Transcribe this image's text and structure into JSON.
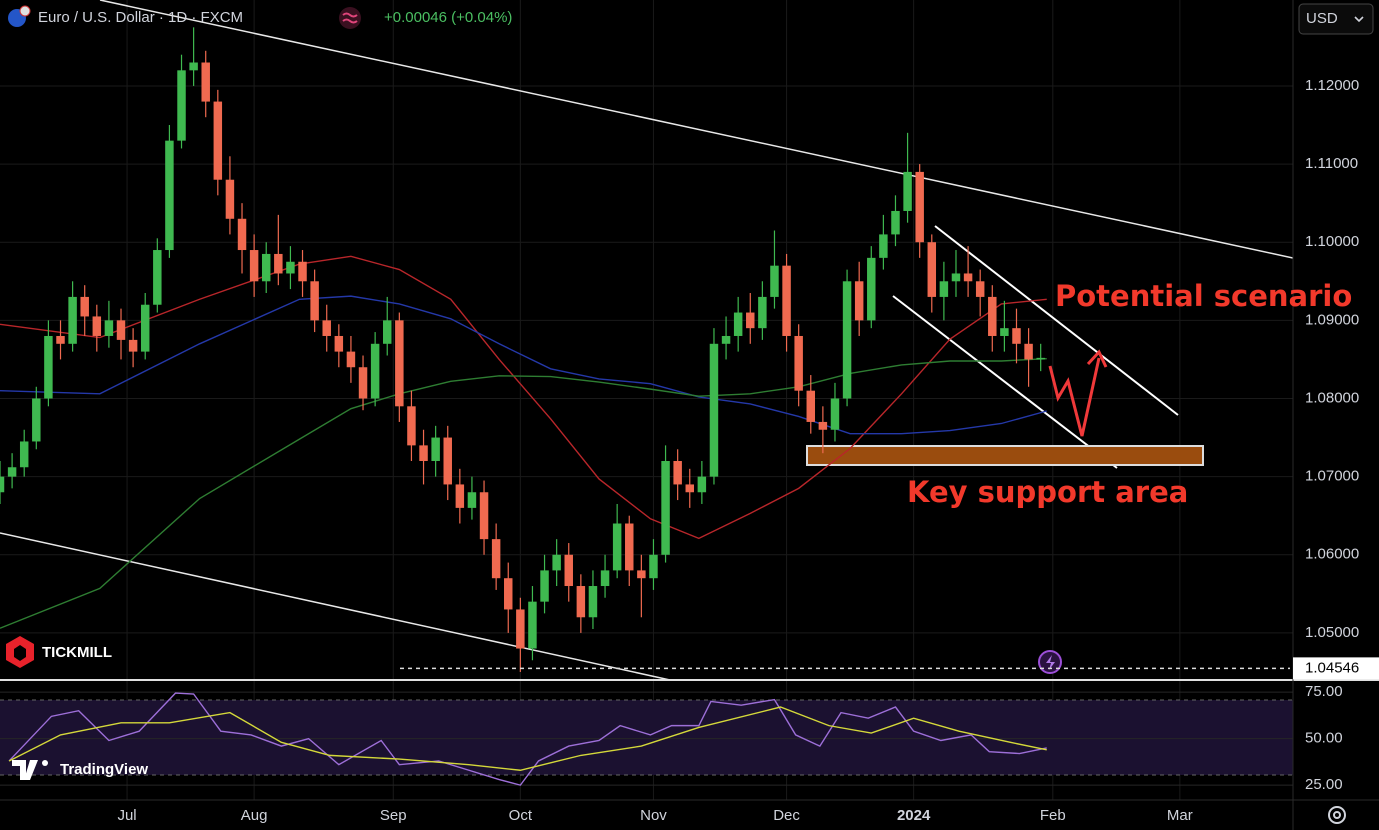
{
  "header": {
    "title": "Euro / U.S. Dollar · 1D · FXCM",
    "change": "+0.00046 (+0.04%)",
    "currency": "USD"
  },
  "branding": {
    "broker": "TICKMILL",
    "platform": "TradingView"
  },
  "chart_data": [
    {
      "type": "candlestick",
      "up_color": "#3fb950",
      "down_color": "#f06a50",
      "x": [
        -21,
        -19,
        -17,
        -15,
        -13,
        -11,
        -9,
        -7,
        -5,
        -3,
        -1,
        1,
        3,
        5,
        7,
        9,
        11,
        13,
        15,
        17,
        19,
        21,
        23,
        25,
        27,
        29,
        31,
        33,
        35,
        37,
        39,
        41,
        43,
        45,
        47,
        49,
        51,
        53,
        55,
        57,
        59,
        61,
        63,
        65,
        67,
        69,
        71,
        73,
        75,
        77,
        79,
        81,
        83,
        85,
        87,
        89,
        91,
        93,
        95,
        97,
        99,
        101,
        103,
        105,
        107,
        109,
        111,
        113,
        115,
        117,
        119,
        121,
        123,
        125,
        127,
        129,
        131,
        133,
        135,
        137,
        139,
        141,
        143,
        145,
        147,
        149,
        151
      ],
      "open": [
        1.068,
        1.07,
        1.0712,
        1.0745,
        1.08,
        1.088,
        1.087,
        1.093,
        1.0905,
        1.088,
        1.09,
        1.0875,
        1.086,
        1.092,
        1.099,
        1.113,
        1.122,
        1.123,
        1.118,
        1.108,
        1.103,
        1.099,
        1.095,
        1.0985,
        1.096,
        1.0975,
        1.095,
        1.09,
        1.088,
        1.086,
        1.084,
        1.08,
        1.087,
        1.09,
        1.079,
        1.074,
        1.072,
        1.075,
        1.069,
        1.066,
        1.068,
        1.062,
        1.057,
        1.053,
        1.048,
        1.054,
        1.058,
        1.06,
        1.056,
        1.052,
        1.056,
        1.058,
        1.064,
        1.058,
        1.057,
        1.06,
        1.072,
        1.069,
        1.068,
        1.07,
        1.087,
        1.088,
        1.091,
        1.089,
        1.093,
        1.097,
        1.088,
        1.081,
        1.077,
        1.076,
        1.08,
        1.095,
        1.09,
        1.098,
        1.101,
        1.104,
        1.109,
        1.1,
        1.093,
        1.095,
        1.096,
        1.095,
        1.093,
        1.088,
        1.089,
        1.087,
        1.085
      ],
      "high": [
        1.072,
        1.073,
        1.076,
        1.0815,
        1.09,
        1.09,
        1.095,
        1.0945,
        1.092,
        1.0925,
        1.0915,
        1.089,
        1.0935,
        1.1005,
        1.115,
        1.124,
        1.1275,
        1.1245,
        1.1195,
        1.111,
        1.105,
        1.101,
        1.1,
        1.1035,
        1.0995,
        1.099,
        1.0965,
        1.092,
        1.0895,
        1.088,
        1.0855,
        1.0885,
        1.093,
        1.091,
        1.081,
        1.076,
        1.0765,
        1.0765,
        1.071,
        1.07,
        1.0695,
        1.064,
        1.059,
        1.0545,
        1.056,
        1.06,
        1.062,
        1.0615,
        1.0575,
        1.058,
        1.06,
        1.0665,
        1.065,
        1.06,
        1.062,
        1.074,
        1.0735,
        1.071,
        1.072,
        1.089,
        1.0905,
        1.093,
        1.0935,
        1.095,
        1.1015,
        1.0985,
        1.0895,
        1.083,
        1.079,
        1.082,
        1.0965,
        1.0975,
        1.0995,
        1.1035,
        1.106,
        1.114,
        1.11,
        1.101,
        1.0975,
        1.099,
        1.0995,
        1.0965,
        1.0945,
        1.0925,
        1.0915,
        1.089,
        1.087
      ],
      "low": [
        1.0665,
        1.0685,
        1.07,
        1.0735,
        1.079,
        1.085,
        1.086,
        1.088,
        1.086,
        1.0865,
        1.085,
        1.084,
        1.085,
        1.091,
        1.098,
        1.112,
        1.12,
        1.116,
        1.106,
        1.101,
        1.096,
        1.093,
        1.0935,
        1.0945,
        1.094,
        1.093,
        1.0885,
        1.086,
        1.084,
        1.082,
        1.0785,
        1.079,
        1.0855,
        1.077,
        1.072,
        1.069,
        1.07,
        1.067,
        1.064,
        1.0645,
        1.06,
        1.0555,
        1.05,
        1.045,
        1.0465,
        1.0525,
        1.056,
        1.054,
        1.05,
        1.0505,
        1.0545,
        1.057,
        1.056,
        1.052,
        1.0555,
        1.059,
        1.067,
        1.066,
        1.0665,
        1.069,
        1.085,
        1.086,
        1.087,
        1.0875,
        1.0915,
        1.086,
        1.079,
        1.0755,
        1.073,
        1.0745,
        1.079,
        1.088,
        1.089,
        1.0965,
        1.0995,
        1.1025,
        1.098,
        1.091,
        1.09,
        1.093,
        1.093,
        1.0905,
        1.086,
        1.086,
        1.0845,
        1.0815,
        1.0835
      ],
      "close": [
        1.07,
        1.0712,
        1.0745,
        1.08,
        1.088,
        1.087,
        1.093,
        1.0905,
        1.088,
        1.09,
        1.0875,
        1.086,
        1.092,
        1.099,
        1.113,
        1.122,
        1.123,
        1.118,
        1.108,
        1.103,
        1.099,
        1.095,
        1.0985,
        1.096,
        1.0975,
        1.095,
        1.09,
        1.088,
        1.086,
        1.084,
        1.08,
        1.087,
        1.09,
        1.079,
        1.074,
        1.072,
        1.075,
        1.069,
        1.066,
        1.068,
        1.062,
        1.057,
        1.053,
        1.048,
        1.054,
        1.058,
        1.06,
        1.056,
        1.052,
        1.056,
        1.058,
        1.064,
        1.058,
        1.057,
        1.06,
        1.072,
        1.069,
        1.068,
        1.07,
        1.087,
        1.088,
        1.091,
        1.089,
        1.093,
        1.097,
        1.088,
        1.081,
        1.077,
        1.076,
        1.08,
        1.095,
        1.09,
        1.098,
        1.101,
        1.104,
        1.109,
        1.1,
        1.093,
        1.095,
        1.096,
        1.095,
        1.093,
        1.088,
        1.089,
        1.087,
        1.085,
        1.0852
      ],
      "moving_averages": [
        {
          "color": "#b8262a",
          "x": [
            -21,
            -4.5,
            12,
            28.5,
            37,
            45,
            53.5,
            61.5,
            70,
            78,
            86.5,
            94.5,
            103,
            111,
            119.5,
            128,
            136,
            144.5,
            152
          ],
          "values": [
            1.0895,
            1.0878,
            1.0927,
            1.0972,
            1.0982,
            1.0965,
            1.0927,
            1.085,
            1.0774,
            1.0697,
            1.0646,
            1.0621,
            1.0653,
            1.0685,
            1.0736,
            1.0806,
            1.0876,
            1.0921,
            1.0927
          ]
        },
        {
          "color": "#2438a8",
          "x": [
            -21,
            -4.5,
            12,
            28.5,
            37,
            45,
            53.5,
            61.5,
            70,
            78,
            86.5,
            94.5,
            103,
            111,
            119.5,
            128,
            136,
            144.5,
            152
          ],
          "values": [
            1.081,
            1.0806,
            1.087,
            1.0927,
            1.0931,
            1.0921,
            1.0902,
            1.087,
            1.0838,
            1.0825,
            1.0819,
            1.0802,
            1.0793,
            1.0777,
            1.0755,
            1.0755,
            1.0759,
            1.0768,
            1.0784
          ]
        },
        {
          "color": "#2e7d32",
          "x": [
            -21,
            -4.5,
            12,
            28.5,
            37,
            45,
            53.5,
            61.5,
            70,
            78,
            86.5,
            94.5,
            103,
            111,
            119.5,
            128,
            136,
            144.5,
            152
          ],
          "values": [
            1.0506,
            1.0557,
            1.0672,
            1.0748,
            1.0787,
            1.0806,
            1.0822,
            1.0829,
            1.0828,
            1.0821,
            1.0812,
            1.0803,
            1.0806,
            1.0815,
            1.0832,
            1.0843,
            1.0848,
            1.0848,
            1.0851
          ]
        }
      ],
      "price_line": {
        "value": 1.04546,
        "label": "1.04546"
      },
      "annotations": [
        "Potential scenario",
        "Key support area"
      ],
      "xlim": [
        -21,
        192.7
      ],
      "xticks": [
        {
          "value": 0,
          "label": "Jul"
        },
        {
          "value": 21,
          "label": "Aug"
        },
        {
          "value": 44,
          "label": "Sep"
        },
        {
          "value": 65,
          "label": "Oct"
        },
        {
          "value": 87,
          "label": "Nov"
        },
        {
          "value": 109,
          "label": "Dec"
        },
        {
          "value": 130,
          "label": "2024"
        },
        {
          "value": 153,
          "label": "Feb"
        },
        {
          "value": 174,
          "label": "Mar"
        }
      ],
      "ylim": [
        1.0441,
        1.131
      ],
      "yticks": [
        {
          "value": 1.05,
          "label": "1.05000"
        },
        {
          "value": 1.06,
          "label": "1.06000"
        },
        {
          "value": 1.07,
          "label": "1.07000"
        },
        {
          "value": 1.08,
          "label": "1.08000"
        },
        {
          "value": 1.09,
          "label": "1.09000"
        },
        {
          "value": 1.1,
          "label": "1.10000"
        },
        {
          "value": 1.11,
          "label": "1.11000"
        },
        {
          "value": 1.12,
          "label": "1.12000"
        }
      ]
    },
    {
      "type": "line",
      "series": [
        {
          "color": "#9d6fd8",
          "x": [
            -19.5,
            -12.5,
            -8,
            -3,
            2,
            8,
            11,
            15.5,
            20.5,
            25.5,
            30,
            35,
            42,
            45,
            51.5,
            56.5,
            61.5,
            65,
            68,
            73,
            78,
            81.5,
            86.5,
            90,
            94.5,
            96.5,
            101.5,
            107,
            110.5,
            114.5,
            118,
            122.5,
            127,
            130,
            134.5,
            139.5,
            142.5,
            147.5,
            152
          ],
          "values": [
            38,
            62,
            65,
            49,
            54,
            74.5,
            74,
            54,
            52,
            46,
            50,
            36,
            49,
            36,
            38,
            33,
            28,
            25,
            38,
            46,
            49,
            57,
            52,
            57,
            57,
            70,
            68,
            71,
            52,
            46,
            64,
            61,
            67,
            54,
            49,
            52,
            43,
            42,
            45
          ]
        },
        {
          "color": "#d4d83a",
          "x": [
            -19.5,
            -11,
            -1,
            7,
            17,
            25.5,
            33.5,
            45,
            56.5,
            65,
            75,
            85,
            94.5,
            108,
            116,
            123,
            130,
            137.5,
            146,
            152
          ],
          "values": [
            38,
            52,
            58.5,
            58.5,
            64,
            48,
            41,
            39,
            36,
            33,
            41,
            46,
            56,
            67,
            57,
            53,
            61,
            54,
            48,
            44
          ]
        }
      ],
      "xlim": [
        -21,
        192.7
      ],
      "ylim": [
        17,
        81
      ],
      "yticks": [
        {
          "value": 25,
          "label": "25.00"
        },
        {
          "value": 50,
          "label": "50.00"
        },
        {
          "value": 75,
          "label": "75.00"
        }
      ]
    }
  ]
}
